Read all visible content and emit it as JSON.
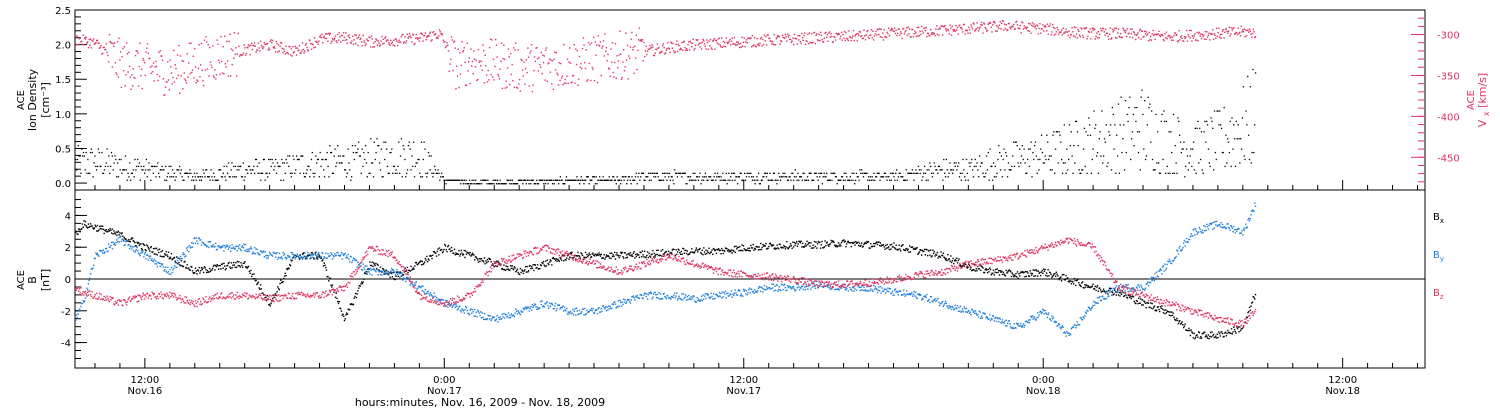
{
  "colors": {
    "density": "#000000",
    "vx": "#e0335f",
    "bx": "#000000",
    "by": "#1f7fdb",
    "bz": "#e0335f",
    "axes": "#000000"
  },
  "x_axis": {
    "ticks": [
      {
        "hour": 12,
        "time": "12:00",
        "date": "Nov.16"
      },
      {
        "hour": 24,
        "time": "0:00",
        "date": "Nov.17"
      },
      {
        "hour": 36,
        "time": "12:00",
        "date": "Nov.17"
      },
      {
        "hour": 48,
        "time": "0:00",
        "date": "Nov.18"
      },
      {
        "hour": 60,
        "time": "12:00",
        "date": "Nov.18"
      }
    ],
    "label": "hours:minutes, Nov. 16, 2009 - Nov. 18, 2009"
  },
  "chart_data": [
    {
      "type": "scatter",
      "panel": "top",
      "xlim": [
        9.2,
        63.3
      ],
      "ylabel_left": [
        "ACE",
        "Ion Density",
        "[cm⁻³]"
      ],
      "ylabel_right": [
        "ACE",
        "V",
        "x",
        "[km/s]"
      ],
      "ylim_left": [
        -0.1,
        2.5
      ],
      "ylim_right": [
        -490,
        -270
      ],
      "left_ticks": [
        "0.0",
        "0.5",
        "1.0",
        "1.5",
        "2.0",
        "2.5"
      ],
      "right_ticks": [
        "-300",
        "-350",
        "-400",
        "-450"
      ],
      "series": [
        {
          "axis": "right",
          "color": "vx",
          "x": [
            9.2,
            10,
            11,
            12,
            13,
            14,
            15,
            16,
            17,
            18,
            19,
            20,
            21,
            22,
            23,
            23.8,
            24.5,
            25,
            26,
            27,
            28,
            29,
            30,
            31,
            32,
            33,
            34,
            35,
            36,
            37,
            38,
            39,
            40,
            41,
            42,
            43,
            44,
            45,
            46,
            46.5,
            47,
            48,
            49,
            50,
            51,
            52,
            53,
            54,
            55,
            56,
            56.5
          ],
          "y": [
            -305,
            -310,
            -335,
            -340,
            -345,
            -335,
            -325,
            -318,
            -312,
            -320,
            -305,
            -303,
            -308,
            -306,
            -304,
            -298,
            -340,
            -330,
            -335,
            -340,
            -338,
            -335,
            -330,
            -325,
            -320,
            -315,
            -312,
            -310,
            -308,
            -306,
            -305,
            -303,
            -302,
            -300,
            -298,
            -296,
            -294,
            -292,
            -290,
            -288,
            -290,
            -292,
            -296,
            -298,
            -298,
            -300,
            -302,
            -300,
            -298,
            -296,
            -297
          ]
        },
        {
          "axis": "left",
          "color": "density",
          "x": [
            9.2,
            10,
            11,
            12,
            13,
            14,
            15,
            16,
            17,
            18,
            19,
            20,
            21,
            22,
            23,
            24,
            25,
            26,
            27,
            28,
            29,
            30,
            31,
            32,
            33,
            34,
            35,
            36,
            37,
            38,
            39,
            40,
            41,
            42,
            43,
            44,
            45,
            46,
            47,
            48,
            49,
            50,
            51,
            52,
            53,
            54,
            55,
            56,
            56.5
          ],
          "y": [
            0.3,
            0.3,
            0.25,
            0.2,
            0.15,
            0.1,
            0.15,
            0.2,
            0.2,
            0.25,
            0.3,
            0.3,
            0.35,
            0.4,
            0.4,
            0.05,
            0.02,
            0.02,
            0.03,
            0.03,
            0.05,
            0.05,
            0.05,
            0.1,
            0.1,
            0.1,
            0.1,
            0.1,
            0.1,
            0.1,
            0.1,
            0.1,
            0.1,
            0.1,
            0.15,
            0.2,
            0.2,
            0.3,
            0.35,
            0.4,
            0.5,
            0.6,
            0.7,
            0.8,
            0.6,
            0.5,
            0.6,
            0.8,
            1.0
          ]
        }
      ]
    },
    {
      "type": "scatter",
      "panel": "bottom",
      "xlim": [
        9.2,
        63.3
      ],
      "ylabel": [
        "ACE",
        "B",
        "[nT]"
      ],
      "ylim": [
        -5.6,
        5.6
      ],
      "ticks": [
        "-4",
        "-2",
        "0",
        "2",
        "4"
      ],
      "zero_line": true,
      "legend": [
        {
          "text": "B",
          "sub": "x",
          "color": "bx"
        },
        {
          "text": "B",
          "sub": "y",
          "color": "by"
        },
        {
          "text": "B",
          "sub": "z",
          "color": "bz"
        }
      ],
      "series": [
        {
          "color": "bx",
          "x": [
            9.2,
            9.5,
            10,
            11,
            12,
            13,
            14,
            15,
            16,
            17,
            18,
            19,
            20,
            21,
            22,
            23,
            24,
            25,
            26,
            27,
            28,
            29,
            30,
            31,
            32,
            33,
            34,
            35,
            36,
            37,
            38,
            39,
            40,
            41,
            42,
            43,
            44,
            45,
            46,
            47,
            48,
            49,
            50,
            51,
            52,
            53,
            54,
            55,
            56,
            56.5
          ],
          "y": [
            2.8,
            3.5,
            3.3,
            2.8,
            2.0,
            1.5,
            0.5,
            0.8,
            1.0,
            -1.5,
            1.5,
            1.5,
            -2.5,
            1.0,
            0.2,
            1.0,
            2.0,
            1.5,
            1.0,
            0.5,
            1.0,
            1.5,
            1.5,
            1.5,
            1.6,
            1.7,
            1.8,
            1.8,
            2.0,
            2.1,
            2.2,
            2.2,
            2.3,
            2.2,
            2.1,
            1.8,
            1.5,
            0.8,
            0.5,
            0.3,
            0.5,
            0.0,
            -0.5,
            -0.8,
            -1.5,
            -2.0,
            -3.5,
            -3.5,
            -3.0,
            -0.8
          ]
        },
        {
          "color": "by",
          "x": [
            9.2,
            9.5,
            10,
            11,
            12,
            13,
            14,
            15,
            16,
            17,
            18,
            19,
            20,
            21,
            22,
            23,
            24,
            25,
            26,
            27,
            28,
            29,
            30,
            31,
            32,
            33,
            34,
            35,
            36,
            37,
            38,
            39,
            40,
            41,
            42,
            43,
            44,
            45,
            46,
            47,
            48,
            49,
            50,
            51,
            52,
            53,
            54,
            55,
            56,
            56.5
          ],
          "y": [
            -2.5,
            -1.5,
            1.5,
            2.5,
            1.5,
            0.5,
            2.5,
            2.0,
            2.0,
            1.5,
            1.5,
            1.5,
            1.5,
            0.5,
            0.5,
            -0.5,
            -1.5,
            -2.0,
            -2.5,
            -2.0,
            -1.5,
            -2.0,
            -2.0,
            -1.5,
            -1.0,
            -1.0,
            -1.2,
            -1.0,
            -0.8,
            -0.5,
            -0.5,
            -0.3,
            -0.5,
            -0.5,
            -0.8,
            -1.0,
            -1.5,
            -2.0,
            -2.5,
            -3.0,
            -2.0,
            -3.5,
            -1.5,
            -0.5,
            -0.5,
            1.0,
            3.0,
            3.5,
            3.0,
            4.8
          ]
        },
        {
          "color": "bz",
          "x": [
            9.2,
            9.5,
            10,
            11,
            12,
            13,
            14,
            15,
            16,
            17,
            18,
            19,
            20,
            21,
            22,
            23,
            24,
            25,
            26,
            27,
            28,
            29,
            30,
            31,
            32,
            33,
            34,
            35,
            36,
            37,
            38,
            39,
            40,
            41,
            42,
            43,
            44,
            45,
            46,
            47,
            48,
            49,
            50,
            51,
            52,
            53,
            54,
            55,
            56,
            56.5
          ],
          "y": [
            -0.5,
            -0.8,
            -1.0,
            -1.5,
            -1.0,
            -1.0,
            -1.5,
            -1.0,
            -1.0,
            -1.2,
            -1.0,
            -1.0,
            -0.5,
            2.0,
            1.5,
            -1.0,
            -1.5,
            -1.0,
            1.0,
            1.5,
            2.0,
            1.5,
            1.0,
            0.5,
            1.0,
            1.5,
            1.0,
            0.5,
            0.3,
            0.2,
            0.0,
            -0.3,
            -0.3,
            -0.2,
            0.0,
            0.3,
            0.5,
            1.0,
            1.2,
            1.5,
            2.0,
            2.5,
            2.0,
            -0.5,
            -1.0,
            -1.5,
            -2.0,
            -2.5,
            -2.8,
            -2.0
          ]
        }
      ]
    }
  ]
}
